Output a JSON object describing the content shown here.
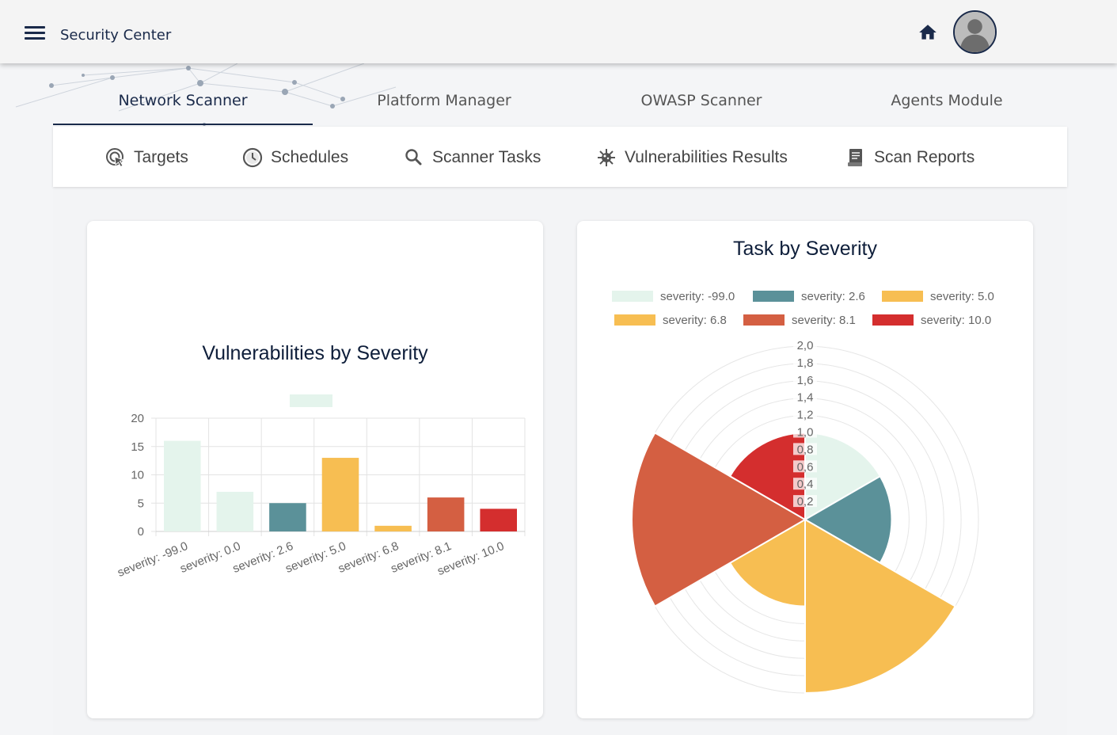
{
  "header": {
    "app_title": "Security Center",
    "icons": [
      "menu-icon",
      "home-icon",
      "user-avatar"
    ]
  },
  "module_tabs": [
    {
      "label": "Network Scanner",
      "active": true
    },
    {
      "label": "Platform Manager",
      "active": false
    },
    {
      "label": "OWASP Scanner",
      "active": false
    },
    {
      "label": "Agents Module",
      "active": false
    }
  ],
  "sub_nav": [
    {
      "label": "Targets",
      "icon": "target-cursor-icon"
    },
    {
      "label": "Schedules",
      "icon": "clock-icon"
    },
    {
      "label": "Scanner Tasks",
      "icon": "search-icon"
    },
    {
      "label": "Vulnerabilities Results",
      "icon": "virus-icon"
    },
    {
      "label": "Scan Reports",
      "icon": "report-icon"
    }
  ],
  "colors": {
    "navy": "#1a2a4a",
    "s_neg99": "#e4f4ec",
    "s_00": "#e4f4ec",
    "s_26": "#5b9199",
    "s_50": "#f7be52",
    "s_68": "#f7be52",
    "s_81": "#d45f42",
    "s_100": "#d42e2e"
  },
  "chart_data": [
    {
      "type": "bar",
      "title": "Vulnerabilities by Severity",
      "categories": [
        "severity: -99.0",
        "severity: 0.0",
        "severity: 2.6",
        "severity: 5.0",
        "severity: 6.8",
        "severity: 8.1",
        "severity: 10.0"
      ],
      "values": [
        16,
        7,
        5,
        13,
        1,
        6,
        4
      ],
      "colors": [
        "#e4f4ec",
        "#e4f4ec",
        "#5b9199",
        "#f7be52",
        "#f7be52",
        "#d45f42",
        "#d42e2e"
      ],
      "ylim": [
        0,
        20
      ],
      "yticks": [
        "0",
        "5",
        "10",
        "15",
        "20"
      ],
      "legend": "top",
      "grid": true
    },
    {
      "type": "polarArea",
      "title": "Task by Severity",
      "categories": [
        "severity: -99.0",
        "severity: 2.6",
        "severity: 5.0",
        "severity: 6.8",
        "severity: 8.1",
        "severity: 10.0"
      ],
      "values": [
        1,
        1,
        2,
        1,
        2,
        1
      ],
      "colors": [
        "#e4f4ec",
        "#5b9199",
        "#f7be52",
        "#f7be52",
        "#d45f42",
        "#d42e2e"
      ],
      "rlim": [
        0,
        2
      ],
      "rticks": [
        "0,2",
        "0,4",
        "0,6",
        "0,8",
        "1,0",
        "1,2",
        "1,4",
        "1,6",
        "1,8",
        "2,0"
      ],
      "legend": "top"
    }
  ]
}
